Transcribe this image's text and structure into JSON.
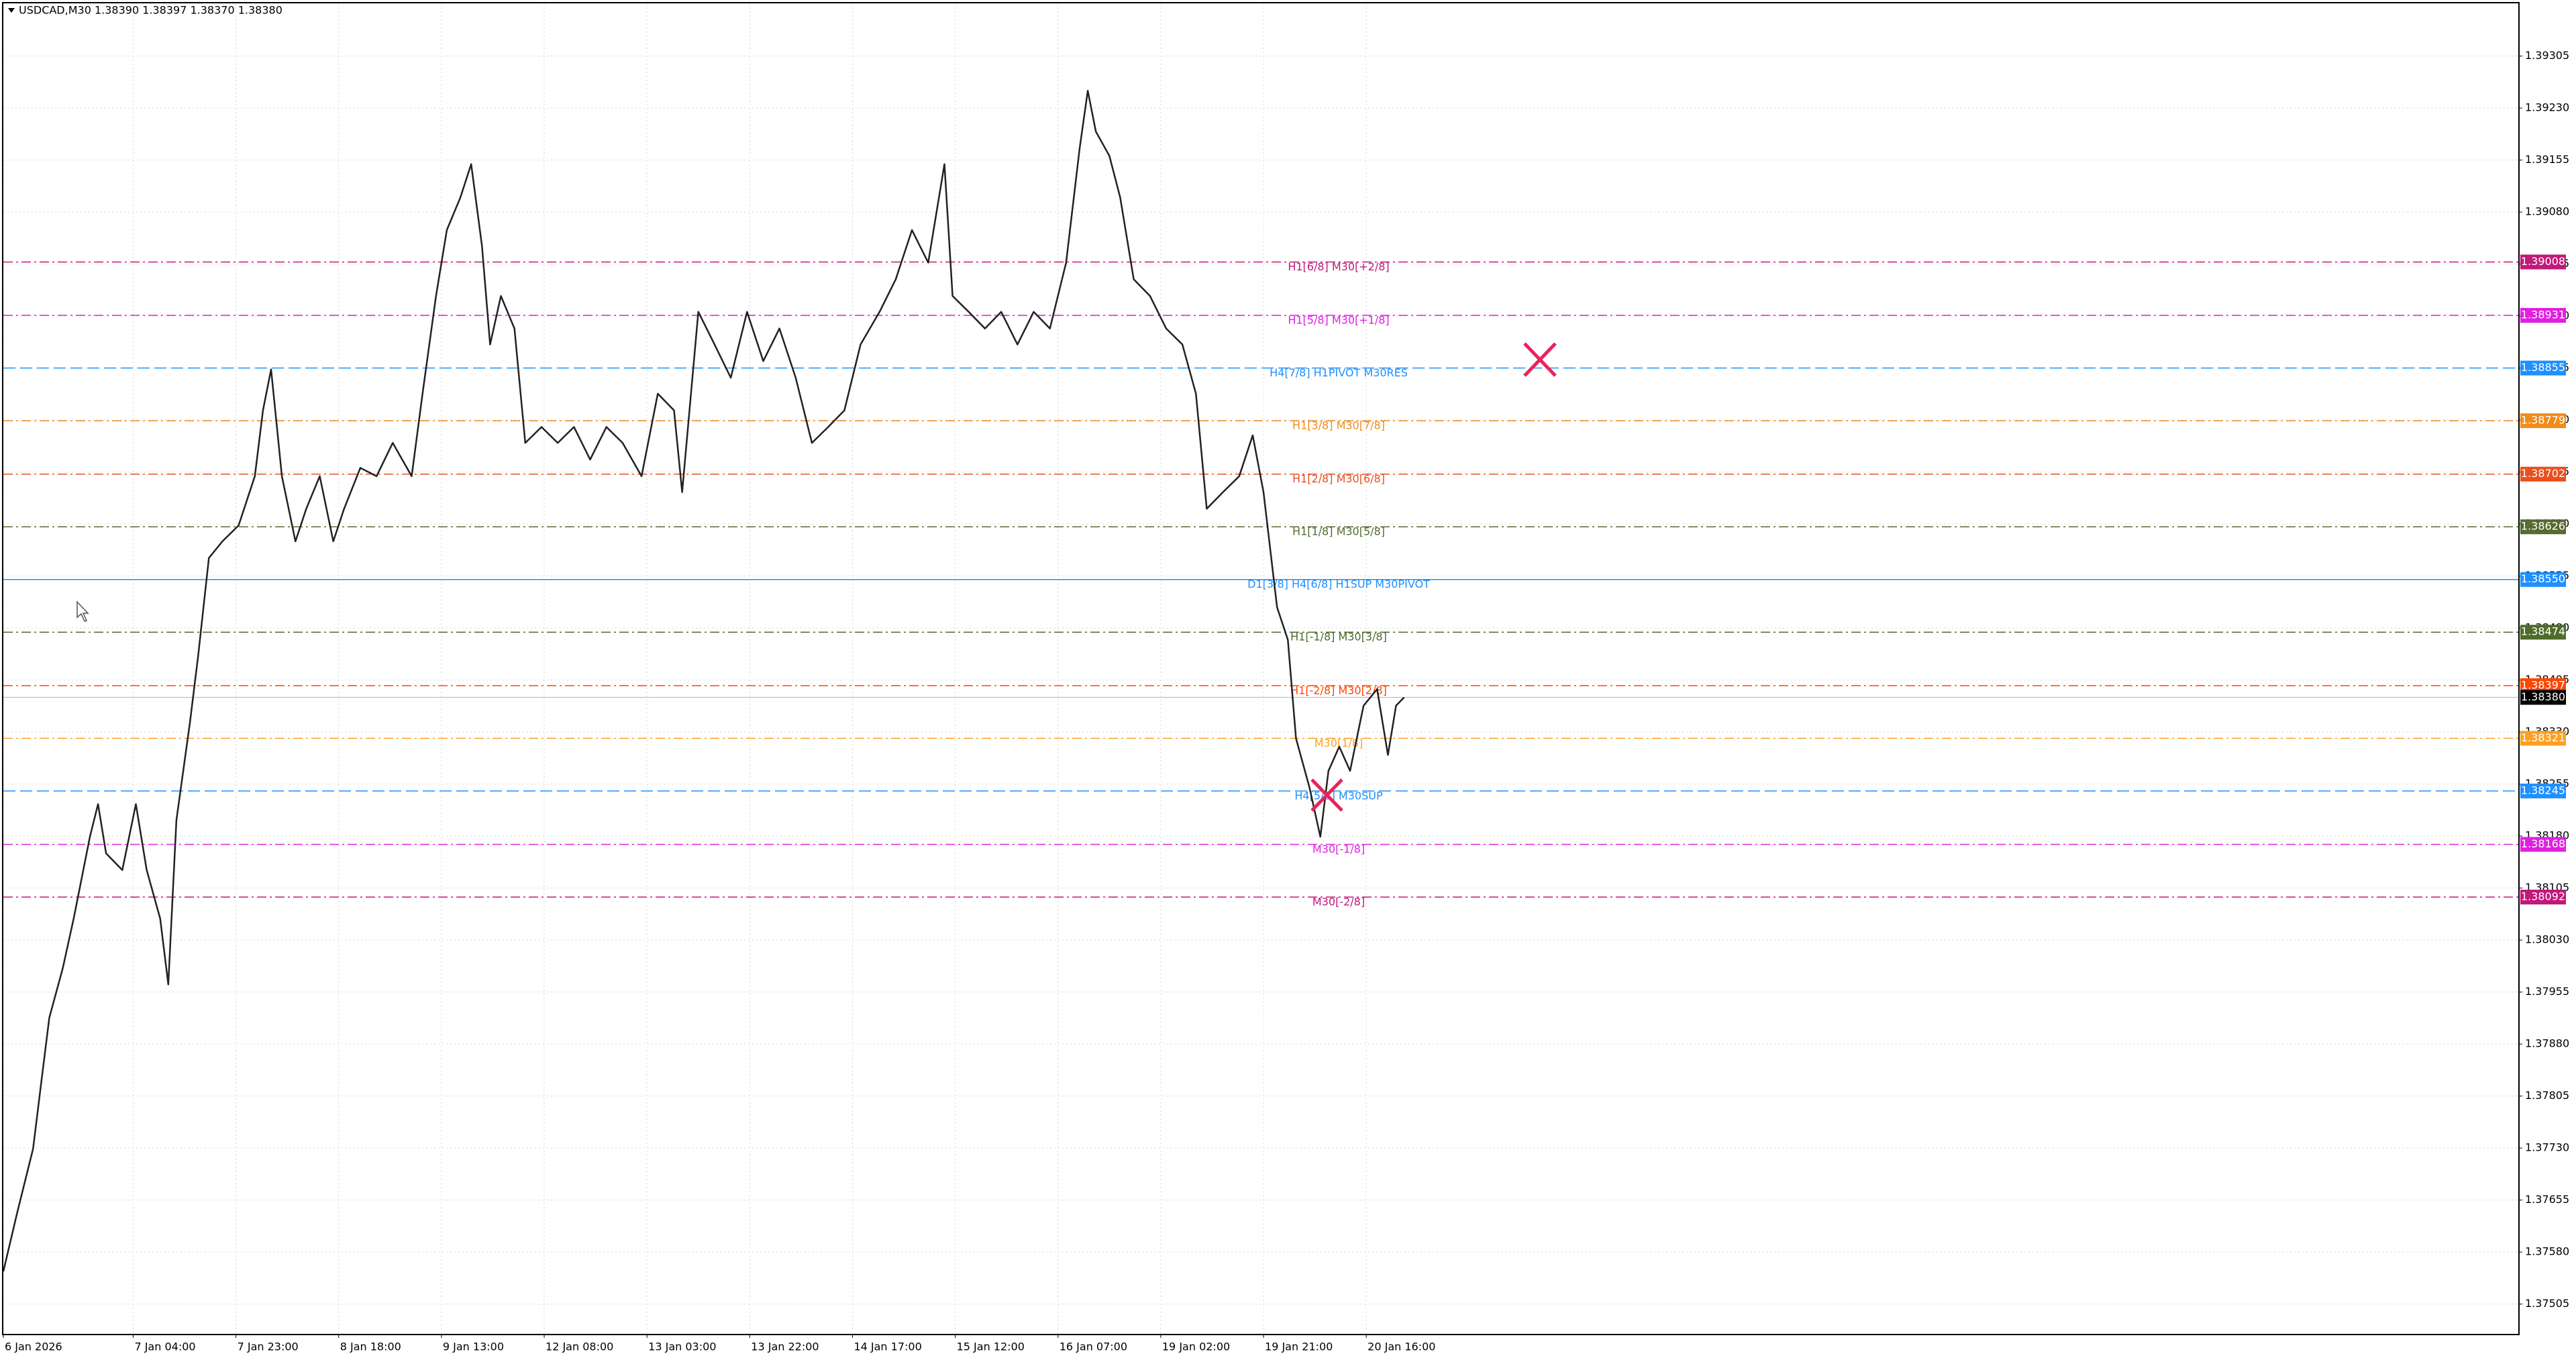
{
  "chart_data": {
    "type": "line",
    "header": "USDCAD,M30  1.38390 1.38397 1.38370 1.38380",
    "color": "#222222",
    "grid": true,
    "xlim": [
      0,
      930
    ],
    "ylim": [
      1.37462,
      1.39381
    ],
    "xticks": [
      {
        "value": 0,
        "label": "6 Jan 2026"
      },
      {
        "value": 48,
        "label": "7 Jan 04:00"
      },
      {
        "value": 86,
        "label": "7 Jan 23:00"
      },
      {
        "value": 124,
        "label": "8 Jan 18:00"
      },
      {
        "value": 162,
        "label": "9 Jan 13:00"
      },
      {
        "value": 200,
        "label": "12 Jan 08:00"
      },
      {
        "value": 238,
        "label": "13 Jan 03:00"
      },
      {
        "value": 276,
        "label": "13 Jan 22:00"
      },
      {
        "value": 314,
        "label": "14 Jan 17:00"
      },
      {
        "value": 352,
        "label": "15 Jan 12:00"
      },
      {
        "value": 390,
        "label": "16 Jan 07:00"
      },
      {
        "value": 428,
        "label": "19 Jan 02:00"
      },
      {
        "value": 466,
        "label": "19 Jan 21:00"
      },
      {
        "value": 504,
        "label": "20 Jan 16:00"
      }
    ],
    "yticks": [
      1.39305,
      {
        "value": 1.3923,
        "label": "1.39230"
      },
      1.39155,
      {
        "value": 1.3908,
        "label": "1.39080"
      },
      1.39005,
      {
        "value": 1.3893,
        "label": "1.38930"
      },
      1.38855,
      {
        "value": 1.3878,
        "label": "1.38780"
      },
      1.38705,
      {
        "value": 1.3863,
        "label": "1.38630"
      },
      1.38555,
      {
        "value": 1.3848,
        "label": "1.38480"
      },
      1.38405,
      {
        "value": 1.3833,
        "label": "1.38330"
      },
      1.38255,
      {
        "value": 1.3818,
        "label": "1.38180"
      },
      1.38105,
      {
        "value": 1.3803,
        "label": "1.38030"
      },
      1.37955,
      {
        "value": 1.3788,
        "label": "1.37880"
      },
      1.37805,
      {
        "value": 1.3773,
        "label": "1.37730"
      },
      1.37655,
      {
        "value": 1.3758,
        "label": "1.37580"
      },
      1.37505
    ],
    "x": [
      0,
      5,
      11,
      14,
      17,
      22,
      26,
      32,
      35,
      38,
      44,
      49,
      53,
      58,
      61,
      64,
      69,
      72,
      76,
      81,
      87,
      93,
      96,
      99,
      103,
      108,
      112,
      117,
      122,
      126,
      132,
      138,
      144,
      151,
      155,
      160,
      164,
      169,
      173,
      177,
      180,
      184,
      189,
      193,
      199,
      205,
      211,
      217,
      223,
      229,
      236,
      242,
      248,
      251,
      257,
      263,
      269,
      275,
      281,
      287,
      293,
      299,
      305,
      311,
      317,
      324,
      330,
      336,
      342,
      348,
      351,
      357,
      363,
      369,
      375,
      381,
      387,
      393,
      398,
      401,
      404,
      409,
      413,
      418,
      424,
      430,
      436,
      441,
      445,
      451,
      457,
      462,
      466,
      471,
      475,
      478,
      483,
      487,
      490,
      494,
      498,
      503,
      508,
      512,
      515,
      518
    ],
    "values": [
      1.37552,
      1.37635,
      1.37729,
      1.37824,
      1.37918,
      1.3799,
      1.38061,
      1.38179,
      1.38226,
      1.38155,
      1.38131,
      1.38226,
      1.38131,
      1.38061,
      1.37966,
      1.38203,
      1.38344,
      1.38439,
      1.38581,
      1.38605,
      1.38628,
      1.38699,
      1.38794,
      1.38853,
      1.38699,
      1.38605,
      1.38652,
      1.38699,
      1.38605,
      1.38652,
      1.38711,
      1.38699,
      1.38747,
      1.38699,
      1.38818,
      1.38959,
      1.39054,
      1.39101,
      1.39149,
      1.39031,
      1.38889,
      1.38959,
      1.38912,
      1.38747,
      1.3877,
      1.38747,
      1.3877,
      1.38723,
      1.3877,
      1.38747,
      1.38699,
      1.38818,
      1.38794,
      1.38676,
      1.38936,
      1.38889,
      1.38841,
      1.38936,
      1.38865,
      1.38912,
      1.38841,
      1.38747,
      1.3877,
      1.38794,
      1.38889,
      1.38936,
      1.38983,
      1.39054,
      1.39007,
      1.39149,
      1.38959,
      1.38936,
      1.38912,
      1.38936,
      1.38889,
      1.38936,
      1.38912,
      1.39007,
      1.39172,
      1.39255,
      1.39196,
      1.39161,
      1.39101,
      1.38983,
      1.38959,
      1.38912,
      1.38889,
      1.38818,
      1.38652,
      1.38676,
      1.38699,
      1.38758,
      1.38676,
      1.3851,
      1.38463,
      1.38321,
      1.3825,
      1.38179,
      1.38274,
      1.38309,
      1.38274,
      1.38368,
      1.38392,
      1.38297,
      1.38368,
      1.3838
    ],
    "levels": [
      {
        "name": "H1[6/8] M30[+2/8]",
        "value": 1.39008,
        "color": "#c2187a",
        "style": "dashdot"
      },
      {
        "name": "H1[5/8] M30[+1/8]",
        "value": 1.38931,
        "color": "#e020e0",
        "style": "dashdot"
      },
      {
        "name": "H4[7/8] H1PIVOT M30RES",
        "value": 1.38855,
        "color": "#1e90ff",
        "style": "dash"
      },
      {
        "name": "H1[3/8] M30[7/8]",
        "value": 1.38779,
        "color": "#f08c1a",
        "style": "dashdot"
      },
      {
        "name": "H1[2/8] M30[6/8]",
        "value": 1.38702,
        "color": "#e8501e",
        "style": "dashdot"
      },
      {
        "name": "H1[1/8] M30[5/8]",
        "value": 1.38626,
        "color": "#556b2f",
        "style": "dashdot"
      },
      {
        "name": "D1[3/8] H4[6/8] H1SUP M30PIVOT",
        "value": 1.3855,
        "value_label": "1.38550",
        "color": "#1e90ff",
        "style": "solid"
      },
      {
        "name": "H1[-1/8] M30[3/8]",
        "value": 1.38474,
        "color": "#4d6b2a",
        "style": "dashdot"
      },
      {
        "name": "H1[-2/8] M30[2/8]",
        "value": 1.38397,
        "color": "#ff4500",
        "style": "dashdot"
      },
      {
        "name": "M30[1/8]",
        "value": 1.38321,
        "color": "#ffa020",
        "style": "dashdot"
      },
      {
        "name": "H4[5/8] M30SUP",
        "value": 1.38245,
        "color": "#1e90ff",
        "style": "dash"
      },
      {
        "name": "M30[-1/8]",
        "value": 1.38168,
        "color": "#e020e0",
        "style": "dashdot"
      },
      {
        "name": "M30[-2/8]",
        "value": 1.38092,
        "color": "#c2187a",
        "style": "dashdot"
      }
    ],
    "last": {
      "value": 1.3838,
      "value_label": "1.38380",
      "color": "#000000"
    }
  }
}
